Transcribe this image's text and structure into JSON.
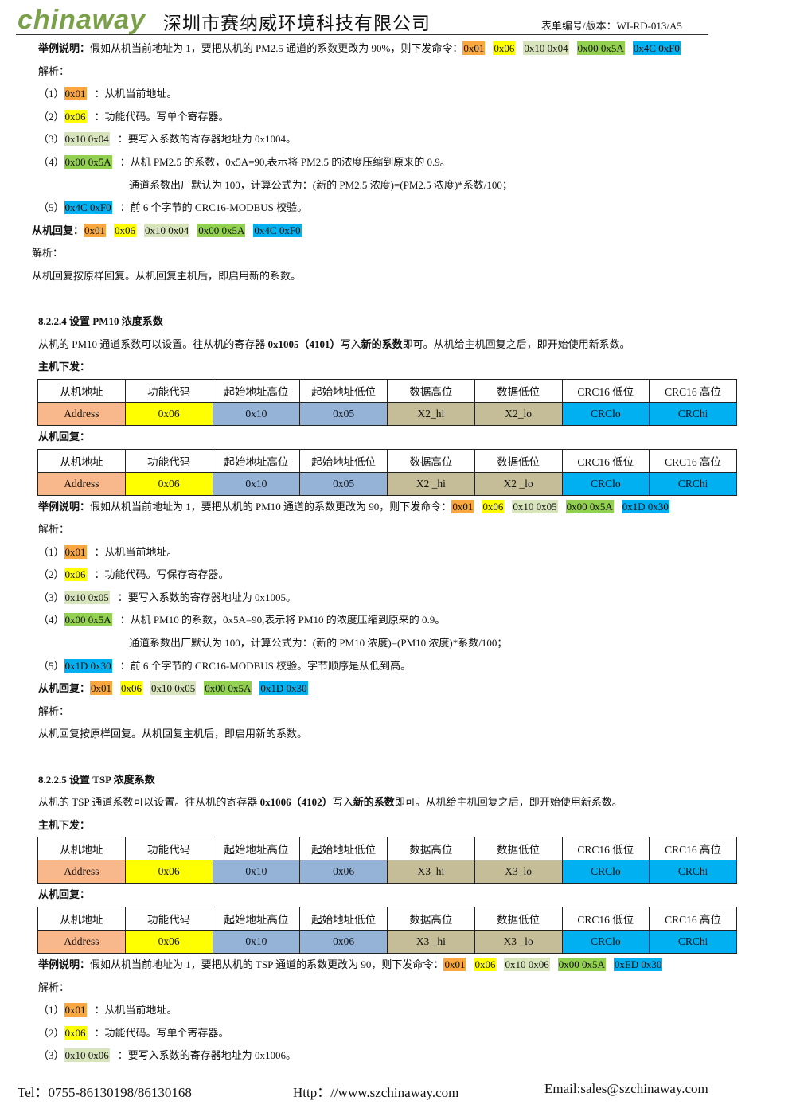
{
  "header": {
    "logo": "chinaway",
    "company": "深圳市赛纳威环境科技有限公司",
    "form_no": "表单编号/版本：WI-RD-013/A5"
  },
  "styles": {
    "highlight_colors": {
      "orange": "#f9a73e",
      "yellow": "#ffff00",
      "pale": "#d8e4bc",
      "green": "#92d050",
      "blue": "#00b0f0"
    },
    "cell_colors": [
      "#f8b88b",
      "#ffff00",
      "#95b3d7",
      "#95b3d7",
      "#c4bd97",
      "#c4bd97",
      "#00b0f0",
      "#00b0f0"
    ]
  },
  "blocks": [
    {
      "kind": "p",
      "segs": [
        {
          "t": "举例说明：",
          "b": true
        },
        {
          "t": "假如从机当前地址为 1，要把从机的 PM2.5 通道的系数更改为 90%，则下发命令："
        },
        {
          "t": "0x01",
          "hl": "orange"
        },
        {
          "t": "0x06",
          "hl": "yellow"
        },
        {
          "t": "0x10 0x04",
          "hl": "pale"
        },
        {
          "t": "0x00 0x5A",
          "hl": "green"
        },
        {
          "t": "0x4C 0xF0",
          "hl": "blue"
        }
      ]
    },
    {
      "kind": "p",
      "segs": [
        {
          "t": "解析："
        }
      ]
    },
    {
      "kind": "p",
      "segs": [
        {
          "t": "（1）"
        },
        {
          "t": "0x01",
          "hl": "orange"
        },
        {
          "t": "：从机当前地址。"
        }
      ]
    },
    {
      "kind": "p",
      "segs": [
        {
          "t": "（2）"
        },
        {
          "t": "0x06",
          "hl": "yellow"
        },
        {
          "t": "：功能代码。写单个寄存器。"
        }
      ]
    },
    {
      "kind": "p",
      "segs": [
        {
          "t": "（3）"
        },
        {
          "t": "0x10 0x04",
          "hl": "pale"
        },
        {
          "t": "：要写入系数的寄存器地址为 0x1004。"
        }
      ]
    },
    {
      "kind": "p",
      "segs": [
        {
          "t": "（4）"
        },
        {
          "t": "0x00 0x5A",
          "hl": "green"
        },
        {
          "t": "：从机 PM2.5 的系数，0x5A=90,表示将 PM2.5 的浓度压缩到原来的 0.9。"
        }
      ]
    },
    {
      "kind": "cont",
      "segs": [
        {
          "t": "通道系数出厂默认为 100，计算公式为：(新的 PM2.5 浓度)=(PM2.5 浓度)*系数/100；"
        }
      ]
    },
    {
      "kind": "p",
      "segs": [
        {
          "t": "（5）"
        },
        {
          "t": "0x4C 0xF0",
          "hl": "blue"
        },
        {
          "t": "：前 6 个字节的 CRC16-MODBUS 校验。"
        }
      ]
    },
    {
      "kind": "left",
      "segs": [
        {
          "t": "从机回复：",
          "b": true
        },
        {
          "t": "0x01",
          "hl": "orange"
        },
        {
          "t": "0x06",
          "hl": "yellow"
        },
        {
          "t": "0x10 0x04",
          "hl": "pale"
        },
        {
          "t": "0x00 0x5A",
          "hl": "green"
        },
        {
          "t": "0x4C 0xF0",
          "hl": "blue"
        }
      ]
    },
    {
      "kind": "left",
      "segs": [
        {
          "t": "解析："
        }
      ]
    },
    {
      "kind": "left",
      "segs": [
        {
          "t": "从机回复按原样回复。从机回复主机后，即启用新的系数。"
        }
      ]
    },
    {
      "kind": "heading",
      "segs": [
        {
          "t": "8.2.2.4 设置 PM10 浓度系数"
        }
      ]
    },
    {
      "kind": "p",
      "segs": [
        {
          "t": "从机的 PM10 通道系数可以设置。往从机的寄存器 "
        },
        {
          "t": "0x1005（4101）",
          "b": true
        },
        {
          "t": "写入"
        },
        {
          "t": "新的系数",
          "b": true
        },
        {
          "t": "即可。从机给主机回复之后，即开始使用新系数。"
        }
      ]
    },
    {
      "kind": "p",
      "segs": [
        {
          "t": "主机下发：",
          "b": true
        }
      ]
    },
    {
      "kind": "table",
      "header": [
        "从机地址",
        "功能代码",
        "起始地址高位",
        "起始地址低位",
        "数据高位",
        "数据低位",
        "CRC16 低位",
        "CRC16 高位"
      ],
      "row": [
        "Address",
        "0x06",
        "0x10",
        "0x05",
        "X2_hi",
        "X2_lo",
        "CRClo",
        "CRChi"
      ]
    },
    {
      "kind": "p",
      "segs": [
        {
          "t": "从机回复：",
          "b": true
        }
      ]
    },
    {
      "kind": "table",
      "header": [
        "从机地址",
        "功能代码",
        "起始地址高位",
        "起始地址低位",
        "数据高位",
        "数据低位",
        "CRC16 低位",
        "CRC16 高位"
      ],
      "row": [
        "Address",
        "0x06",
        "0x10",
        "0x05",
        "X2 _hi",
        "X2 _lo",
        "CRClo",
        "CRChi"
      ]
    },
    {
      "kind": "p",
      "segs": [
        {
          "t": "举例说明：",
          "b": true
        },
        {
          "t": "假如从机当前地址为 1，要把从机的 PM10 通道的系数更改为 90，则下发命令："
        },
        {
          "t": "0x01",
          "hl": "orange"
        },
        {
          "t": "0x06",
          "hl": "yellow"
        },
        {
          "t": "0x10 0x05",
          "hl": "pale"
        },
        {
          "t": "0x00 0x5A",
          "hl": "green"
        },
        {
          "t": "0x1D 0x30",
          "hl": "blue"
        }
      ]
    },
    {
      "kind": "p",
      "segs": [
        {
          "t": "解析："
        }
      ]
    },
    {
      "kind": "p",
      "segs": [
        {
          "t": "（1）"
        },
        {
          "t": "0x01",
          "hl": "orange"
        },
        {
          "t": "：从机当前地址。"
        }
      ]
    },
    {
      "kind": "p",
      "segs": [
        {
          "t": "（2）"
        },
        {
          "t": "0x06",
          "hl": "yellow"
        },
        {
          "t": "：功能代码。写保存寄存器。"
        }
      ]
    },
    {
      "kind": "p",
      "segs": [
        {
          "t": "（3）"
        },
        {
          "t": "0x10 0x05",
          "hl": "pale"
        },
        {
          "t": "：要写入系数的寄存器地址为 0x1005。"
        }
      ]
    },
    {
      "kind": "p",
      "segs": [
        {
          "t": "（4）"
        },
        {
          "t": "0x00 0x5A",
          "hl": "green"
        },
        {
          "t": "：从机 PM10 的系数，0x5A=90,表示将 PM10 的浓度压缩到原来的 0.9。"
        }
      ]
    },
    {
      "kind": "cont",
      "segs": [
        {
          "t": "通道系数出厂默认为 100，计算公式为：(新的 PM10 浓度)=(PM10 浓度)*系数/100；"
        }
      ]
    },
    {
      "kind": "p",
      "segs": [
        {
          "t": "（5）"
        },
        {
          "t": "0x1D 0x30",
          "hl": "blue"
        },
        {
          "t": "：前 6 个字节的 CRC16-MODBUS 校验。字节顺序是从低到高。"
        }
      ]
    },
    {
      "kind": "p",
      "segs": [
        {
          "t": "从机回复：",
          "b": true
        },
        {
          "t": "0x01",
          "hl": "orange"
        },
        {
          "t": "0x06",
          "hl": "yellow"
        },
        {
          "t": "0x10 0x05",
          "hl": "pale"
        },
        {
          "t": "0x00 0x5A",
          "hl": "green"
        },
        {
          "t": "0x1D 0x30",
          "hl": "blue"
        }
      ]
    },
    {
      "kind": "p",
      "segs": [
        {
          "t": "解析："
        }
      ]
    },
    {
      "kind": "p",
      "segs": [
        {
          "t": "从机回复按原样回复。从机回复主机后，即启用新的系数。"
        }
      ]
    },
    {
      "kind": "heading",
      "segs": [
        {
          "t": "8.2.2.5 设置 TSP 浓度系数"
        }
      ]
    },
    {
      "kind": "p",
      "segs": [
        {
          "t": "从机的 TSP 通道系数可以设置。往从机的寄存器 "
        },
        {
          "t": "0x1006（4102）",
          "b": true
        },
        {
          "t": "写入"
        },
        {
          "t": "新的系数",
          "b": true
        },
        {
          "t": "即可。从机给主机回复之后，即开始使用新系数。"
        }
      ]
    },
    {
      "kind": "p",
      "segs": [
        {
          "t": "主机下发：",
          "b": true
        }
      ]
    },
    {
      "kind": "table",
      "header": [
        "从机地址",
        "功能代码",
        "起始地址高位",
        "起始地址低位",
        "数据高位",
        "数据低位",
        "CRC16 低位",
        "CRC16 高位"
      ],
      "row": [
        "Address",
        "0x06",
        "0x10",
        "0x06",
        "X3_hi",
        "X3_lo",
        "CRClo",
        "CRChi"
      ]
    },
    {
      "kind": "p",
      "segs": [
        {
          "t": "从机回复：",
          "b": true
        }
      ]
    },
    {
      "kind": "table",
      "header": [
        "从机地址",
        "功能代码",
        "起始地址高位",
        "起始地址低位",
        "数据高位",
        "数据低位",
        "CRC16 低位",
        "CRC16 高位"
      ],
      "row": [
        "Address",
        "0x06",
        "0x10",
        "0x06",
        "X3 _hi",
        "X3 _lo",
        "CRClo",
        "CRChi"
      ]
    },
    {
      "kind": "p",
      "segs": [
        {
          "t": "举例说明：",
          "b": true
        },
        {
          "t": "假如从机当前地址为 1，要把从机的 TSP 通道的系数更改为 90，则下发命令："
        },
        {
          "t": "0x01",
          "hl": "orange"
        },
        {
          "t": "0x06",
          "hl": "yellow"
        },
        {
          "t": "0x10 0x06",
          "hl": "pale"
        },
        {
          "t": "0x00 0x5A",
          "hl": "green"
        },
        {
          "t": "0xED 0x30",
          "hl": "blue"
        }
      ]
    },
    {
      "kind": "p",
      "segs": [
        {
          "t": "解析："
        }
      ]
    },
    {
      "kind": "p",
      "segs": [
        {
          "t": "（1）"
        },
        {
          "t": "0x01",
          "hl": "orange"
        },
        {
          "t": "：从机当前地址。"
        }
      ]
    },
    {
      "kind": "p",
      "segs": [
        {
          "t": "（2）"
        },
        {
          "t": "0x06",
          "hl": "yellow"
        },
        {
          "t": "：功能代码。写单个寄存器。"
        }
      ]
    },
    {
      "kind": "p",
      "segs": [
        {
          "t": "（3）"
        },
        {
          "t": "0x10 0x06",
          "hl": "pale"
        },
        {
          "t": "：要写入系数的寄存器地址为 0x1006。"
        }
      ]
    }
  ],
  "footer": {
    "tel": "Tel：0755-86130198/86130168",
    "web": "Http：//www.szchinaway.com",
    "email": "Email:sales@szchinaway.com"
  }
}
